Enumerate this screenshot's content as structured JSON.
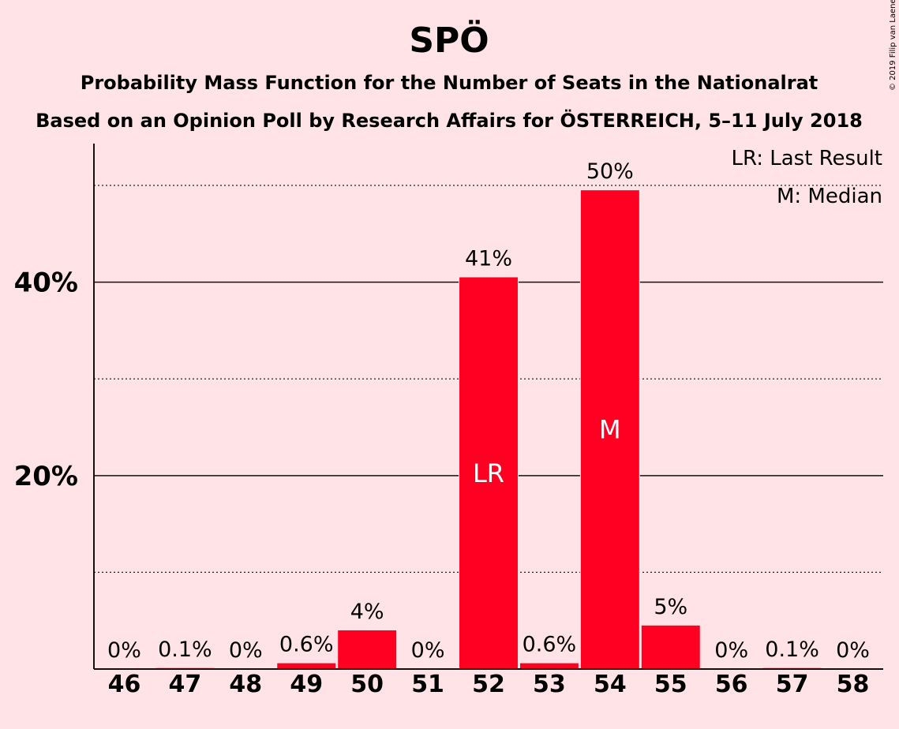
{
  "chart_data": {
    "type": "bar",
    "title": "SPÖ",
    "subtitle_lines": [
      "Probability Mass Function for the Number of Seats in the Nationalrat",
      "Based on an Opinion Poll by Research Affairs for ÖSTERREICH, 5–11 July 2018"
    ],
    "categories": [
      "46",
      "47",
      "48",
      "49",
      "50",
      "51",
      "52",
      "53",
      "54",
      "55",
      "56",
      "57",
      "58"
    ],
    "values": [
      0,
      0.1,
      0,
      0.6,
      4,
      0,
      40.5,
      0.6,
      49.5,
      4.5,
      0,
      0.1,
      0
    ],
    "value_labels": [
      "0%",
      "0.1%",
      "0%",
      "0.6%",
      "4%",
      "0%",
      "41%",
      "0.6%",
      "50%",
      "5%",
      "0%",
      "0.1%",
      "0%"
    ],
    "bar_markers": {
      "52": "LR",
      "54": "M"
    },
    "ylim": [
      0,
      54
    ],
    "y_ticks": [
      20,
      40
    ],
    "y_tick_labels": [
      "20%",
      "40%"
    ],
    "dotted_gridlines": [
      10,
      30,
      50
    ],
    "legend": [
      "LR: Last Result",
      "M: Median"
    ],
    "legend_position": "top-right",
    "bar_color": "#ff0022",
    "copyright": "© 2019 Filip van Laenen"
  }
}
